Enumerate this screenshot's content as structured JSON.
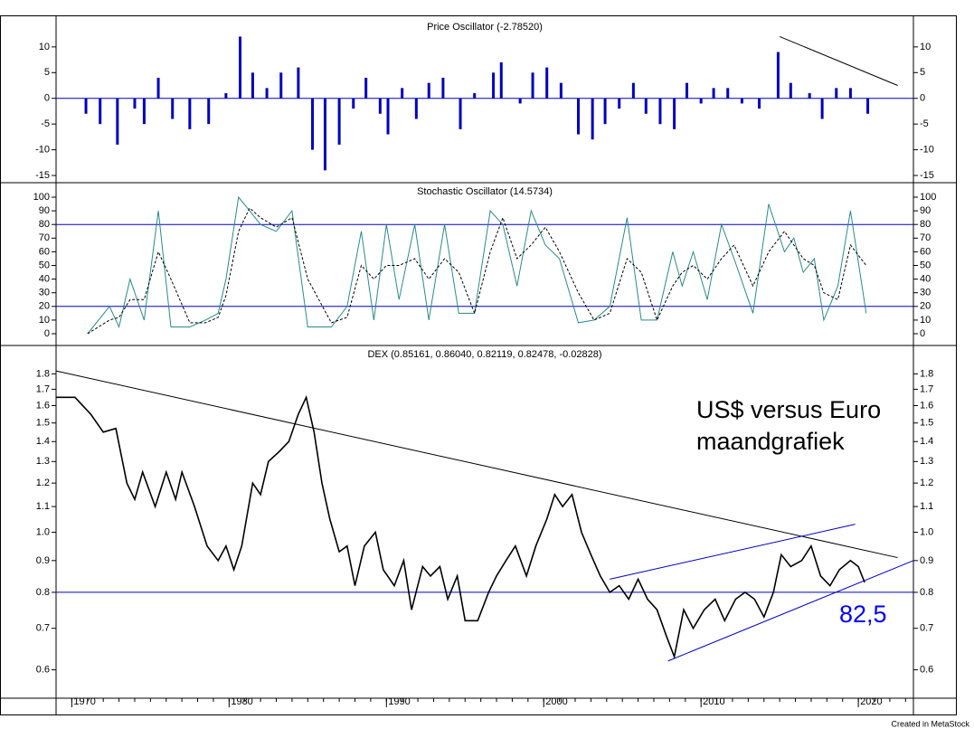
{
  "chart_data": [
    {
      "type": "bar",
      "title": "Price Oscillator (-2.78520)",
      "color": "#0000c0",
      "x": [
        1970.9,
        1971.8,
        1972.9,
        1974.0,
        1974.6,
        1975.5,
        1976.4,
        1977.5,
        1978.7,
        1979.8,
        1980.7,
        1981.5,
        1982.4,
        1983.3,
        1984.4,
        1985.3,
        1986.1,
        1987.0,
        1987.9,
        1988.7,
        1989.6,
        1990.1,
        1991.0,
        1991.9,
        1992.7,
        1993.6,
        1994.7,
        1995.6,
        1996.8,
        1997.3,
        1998.5,
        1999.3,
        2000.2,
        2001.1,
        2002.2,
        2003.1,
        2003.9,
        2004.8,
        2005.7,
        2006.5,
        2007.4,
        2008.3,
        2009.1,
        2010.0,
        2010.8,
        2011.7,
        2012.6,
        2013.7,
        2014.9,
        2015.7,
        2016.9,
        2017.7,
        2018.6,
        2019.5,
        2020.6
      ],
      "values": [
        -3,
        -5,
        -9,
        -2,
        -5,
        4,
        -4,
        -6,
        -5,
        1,
        12,
        5,
        2,
        5,
        6,
        -10,
        -14,
        -9,
        -2,
        4,
        -3,
        -7,
        2,
        -4,
        3,
        4,
        -6,
        1,
        5,
        7,
        -1,
        5,
        6,
        3,
        -7,
        -8,
        -5,
        -2,
        3,
        -3,
        -5,
        -6,
        3,
        -1,
        2,
        2,
        -1,
        -2,
        9,
        3,
        1,
        -4,
        2,
        2,
        -3
      ],
      "ylim": [
        -16.4,
        15.6
      ],
      "yticks": [
        10,
        5,
        0,
        -5,
        -10,
        -15
      ],
      "hlines": [
        {
          "y": 0,
          "color": "#0000c0"
        }
      ],
      "trendlines": [
        {
          "x": [
            2015,
            2022.5
          ],
          "y": [
            12,
            2.5
          ],
          "color": "#000000"
        }
      ]
    },
    {
      "type": "line",
      "title": "Stochastic Oscillator (14.5734)",
      "x": [
        1971,
        1972.4,
        1973,
        1973.7,
        1974.6,
        1975.5,
        1976.3,
        1977.5,
        1978.5,
        1979.3,
        1979.8,
        1980.6,
        1981.3,
        1982,
        1983,
        1984,
        1985,
        1986.5,
        1987.5,
        1988.4,
        1989.2,
        1990,
        1990.8,
        1991.8,
        1992.7,
        1993.7,
        1994.6,
        1995.6,
        1996.6,
        1997.4,
        1998.3,
        1999.2,
        2000.1,
        2001,
        2002.2,
        2003.2,
        2004.2,
        2005.3,
        2006.2,
        2007.2,
        2008.2,
        2008.8,
        2009.5,
        2010.4,
        2011.3,
        2012.1,
        2013.3,
        2014.3,
        2015.3,
        2015.9,
        2016.5,
        2017.2,
        2017.8,
        2018.7,
        2019.5,
        2020.5
      ],
      "series": [
        {
          "color": "#2a8a8a",
          "dash": false,
          "values": [
            0,
            20,
            5,
            40,
            10,
            90,
            5,
            5,
            10,
            15,
            40,
            100,
            90,
            80,
            75,
            90,
            5,
            5,
            20,
            75,
            10,
            80,
            25,
            80,
            10,
            80,
            15,
            15,
            90,
            80,
            35,
            90,
            65,
            55,
            8,
            10,
            20,
            85,
            10,
            10,
            60,
            35,
            60,
            25,
            80,
            55,
            15,
            95,
            60,
            70,
            45,
            55,
            10,
            35,
            90,
            15
          ]
        },
        {
          "color": "#000000",
          "dash": true,
          "values": [
            0,
            10,
            12,
            25,
            25,
            60,
            40,
            8,
            8,
            12,
            28,
            75,
            92,
            85,
            78,
            85,
            40,
            8,
            12,
            50,
            40,
            50,
            50,
            55,
            40,
            55,
            45,
            15,
            60,
            85,
            55,
            65,
            78,
            60,
            30,
            10,
            15,
            55,
            45,
            10,
            35,
            45,
            50,
            40,
            55,
            65,
            35,
            60,
            75,
            65,
            55,
            50,
            30,
            25,
            65,
            50
          ]
        }
      ],
      "ylim": [
        -8.6,
        110.6
      ],
      "yticks": [
        100,
        90,
        80,
        70,
        60,
        50,
        40,
        30,
        20,
        10,
        0
      ],
      "hlines": [
        {
          "y": 80,
          "color": "#0000c0"
        },
        {
          "y": 20,
          "color": "#0000c0"
        }
      ]
    },
    {
      "type": "line",
      "title": "DEX (0.85161, 0.86040, 0.82119, 0.82478, -0.02828)",
      "log": true,
      "x": [
        1969.0,
        1970.2,
        1971.2,
        1972,
        1972.8,
        1973.5,
        1974,
        1974.5,
        1975.3,
        1976,
        1976.6,
        1977,
        1977.8,
        1978.6,
        1979.3,
        1979.8,
        1980.3,
        1980.8,
        1981.5,
        1982,
        1982.5,
        1983.2,
        1983.8,
        1984.4,
        1984.9,
        1985.4,
        1985.9,
        1986.4,
        1987,
        1987.5,
        1988,
        1988.6,
        1989.3,
        1989.8,
        1990.5,
        1991.1,
        1991.6,
        1992.3,
        1992.8,
        1993.4,
        1993.9,
        1994.5,
        1995,
        1995.8,
        1996.5,
        1997,
        1997.6,
        1998.2,
        1998.9,
        1999.5,
        2000.2,
        2000.7,
        2001.2,
        2001.8,
        2002.4,
        2003,
        2003.6,
        2004.2,
        2004.8,
        2005.4,
        2006,
        2006.6,
        2007.2,
        2007.8,
        2008.3,
        2008.9,
        2009.5,
        2010.2,
        2010.9,
        2011.5,
        2012.2,
        2012.8,
        2013.4,
        2014,
        2014.6,
        2015.1,
        2015.7,
        2016.4,
        2017,
        2017.6,
        2018.2,
        2018.8,
        2019.5,
        2020,
        2020.4
      ],
      "series": [
        {
          "color": "#000000",
          "dash": false,
          "values": [
            1.65,
            1.65,
            1.55,
            1.45,
            1.47,
            1.2,
            1.13,
            1.25,
            1.1,
            1.25,
            1.13,
            1.25,
            1.1,
            0.95,
            0.9,
            0.95,
            0.87,
            0.95,
            1.2,
            1.15,
            1.3,
            1.35,
            1.4,
            1.55,
            1.65,
            1.45,
            1.2,
            1.05,
            0.93,
            0.95,
            0.82,
            0.95,
            1.0,
            0.87,
            0.82,
            0.9,
            0.75,
            0.88,
            0.85,
            0.88,
            0.78,
            0.85,
            0.72,
            0.72,
            0.8,
            0.85,
            0.9,
            0.95,
            0.85,
            0.95,
            1.05,
            1.15,
            1.1,
            1.15,
            1.0,
            0.92,
            0.85,
            0.8,
            0.82,
            0.78,
            0.84,
            0.78,
            0.75,
            0.68,
            0.63,
            0.75,
            0.7,
            0.75,
            0.78,
            0.72,
            0.78,
            0.8,
            0.78,
            0.73,
            0.8,
            0.92,
            0.88,
            0.9,
            0.95,
            0.85,
            0.82,
            0.87,
            0.9,
            0.88,
            0.83
          ]
        }
      ],
      "ylim": [
        0.54,
        2.0
      ],
      "yticks": [
        0.6,
        0.7,
        0.8,
        0.9,
        {
          "value": 1,
          "label": "1.0"
        },
        1.1,
        1.2,
        1.3,
        1.4,
        1.5,
        1.6,
        1.7,
        1.8
      ],
      "xlim": [
        1969,
        2023.5
      ],
      "xticks": [
        1970,
        1980,
        1990,
        2000,
        2010,
        2020
      ],
      "hlines": [
        {
          "y": 0.8,
          "color": "#0000c0"
        }
      ],
      "trendlines": [
        {
          "x": [
            1969,
            2022.5
          ],
          "y": [
            1.82,
            0.91
          ],
          "color": "#000000"
        },
        {
          "x": [
            2004.2,
            2019.8
          ],
          "y": [
            0.84,
            1.03
          ],
          "color": "#0000c0"
        },
        {
          "x": [
            2007.9,
            2023.5
          ],
          "y": [
            0.62,
            0.9
          ],
          "color": "#0000c0"
        }
      ],
      "annotations": [
        {
          "text": "US$ versus Euro",
          "color": "#000000"
        },
        {
          "text": "maandgrafiek",
          "color": "#000000"
        },
        {
          "text": "82,5",
          "color": "#0000ff"
        }
      ]
    }
  ],
  "footer": "Created in MetaStock"
}
